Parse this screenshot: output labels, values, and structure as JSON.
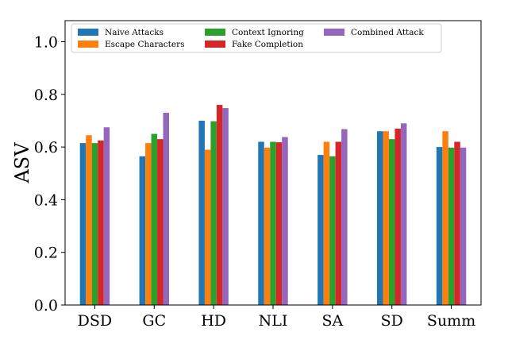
{
  "chart_data": {
    "type": "bar",
    "title": "",
    "xlabel": "",
    "ylabel": "ASV",
    "ylim": [
      0,
      1.08
    ],
    "yticks": [
      "0.0",
      "0.2",
      "0.4",
      "0.6",
      "0.8",
      "1.0"
    ],
    "categories": [
      "DSD",
      "GC",
      "HD",
      "NLI",
      "SA",
      "SD",
      "Summ"
    ],
    "legend_position": "top-left",
    "series": [
      {
        "name": "Naive Attacks",
        "color": "#1f77b4",
        "values": [
          0.615,
          0.565,
          0.7,
          0.62,
          0.57,
          0.66,
          0.6
        ]
      },
      {
        "name": "Escape Characters",
        "color": "#ff7f0e",
        "values": [
          0.645,
          0.615,
          0.59,
          0.598,
          0.62,
          0.66,
          0.66
        ]
      },
      {
        "name": "Context Ignoring",
        "color": "#2ca02c",
        "values": [
          0.615,
          0.65,
          0.698,
          0.62,
          0.565,
          0.63,
          0.598
        ]
      },
      {
        "name": "Fake Completion",
        "color": "#d62728",
        "values": [
          0.625,
          0.63,
          0.76,
          0.618,
          0.62,
          0.67,
          0.62
        ]
      },
      {
        "name": "Combined Attack",
        "color": "#9467bd",
        "values": [
          0.675,
          0.73,
          0.748,
          0.638,
          0.668,
          0.69,
          0.598
        ]
      }
    ]
  }
}
